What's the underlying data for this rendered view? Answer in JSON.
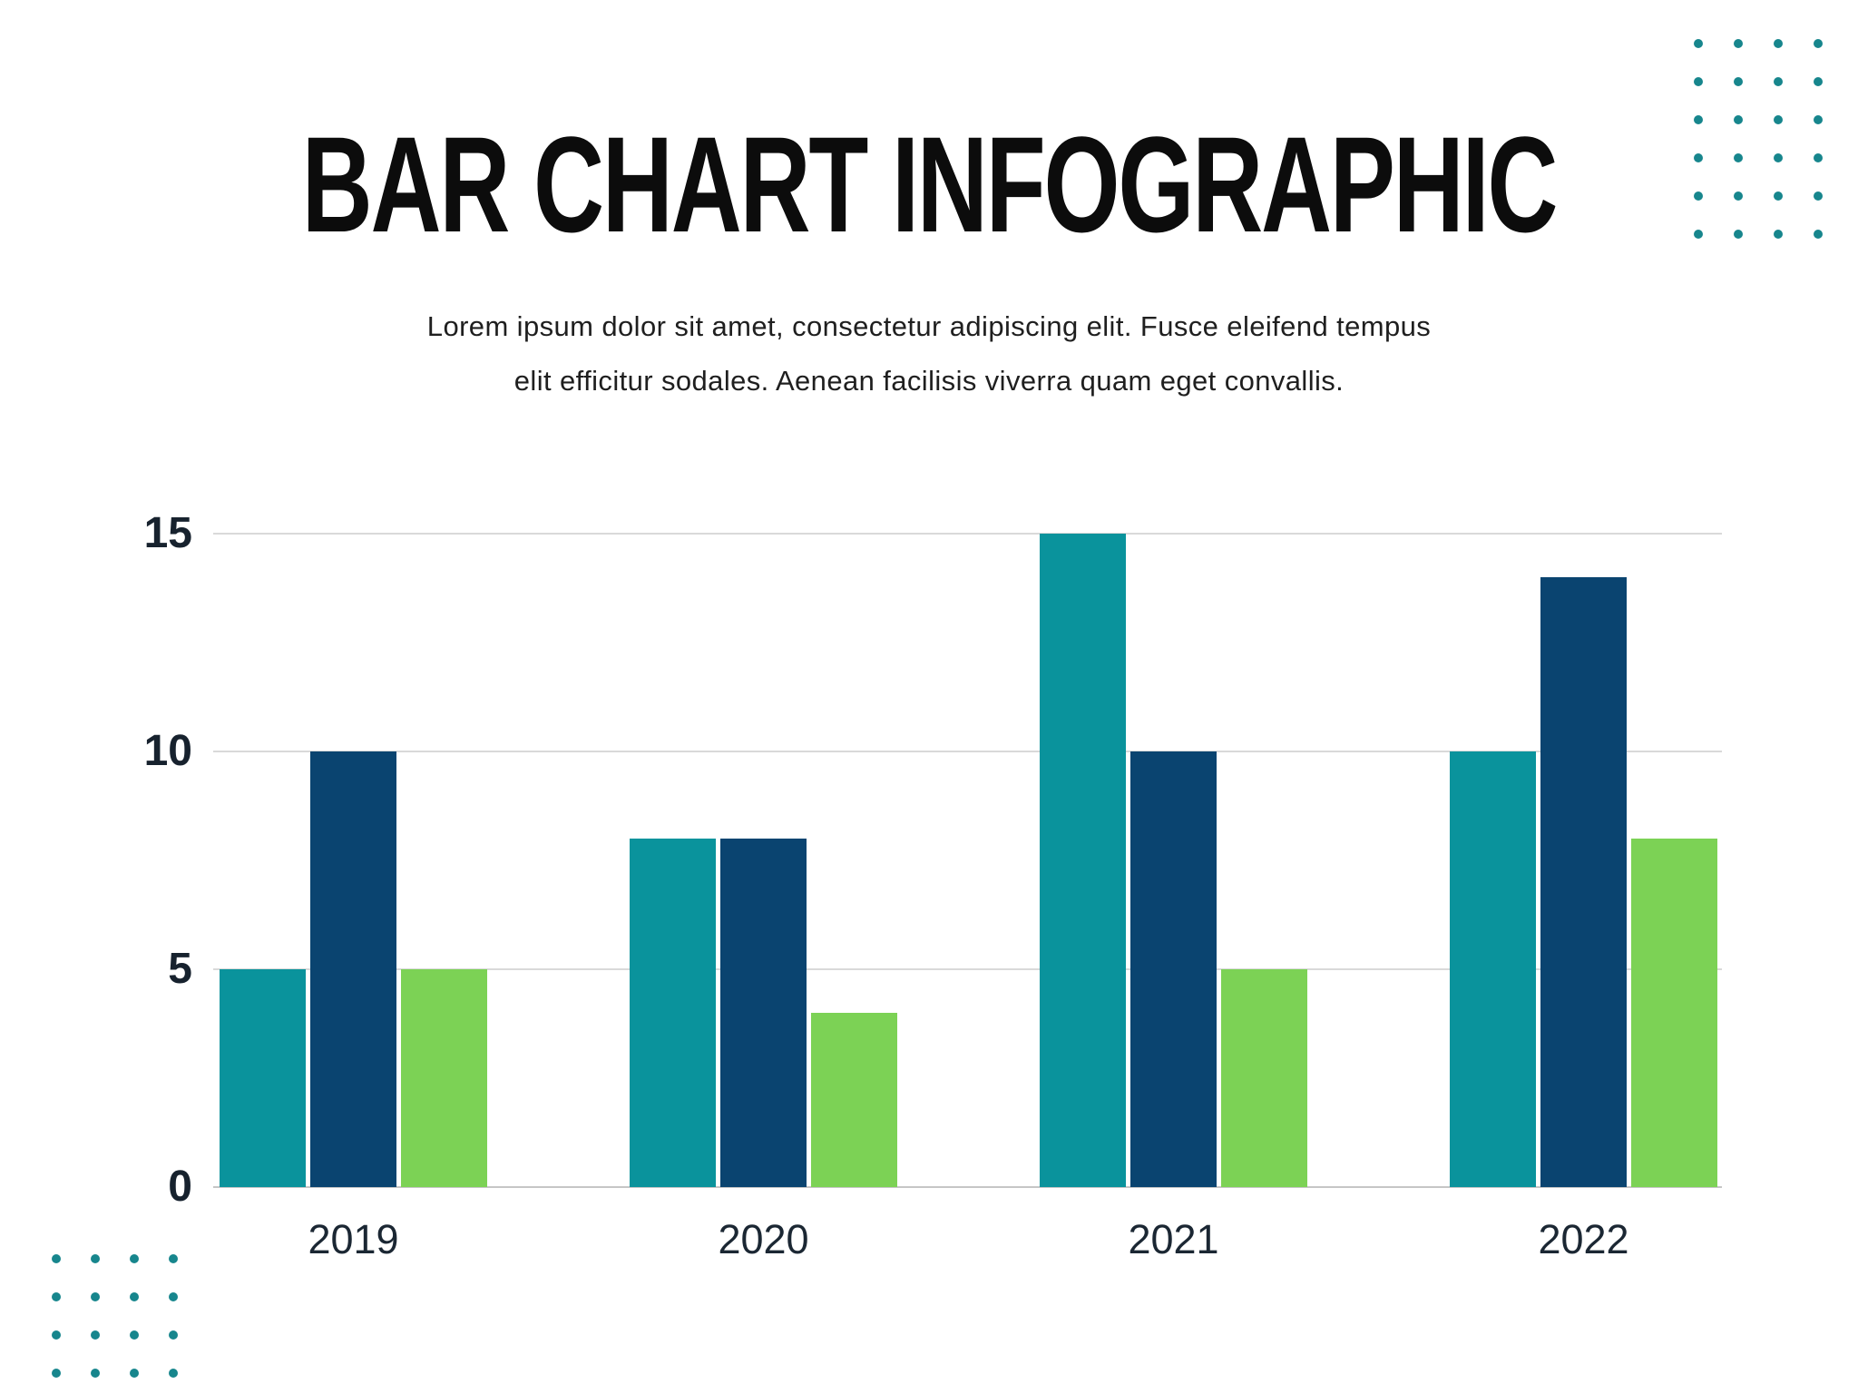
{
  "page": {
    "title": "BAR CHART INFOGRAPHIC",
    "subtitle_line1": "Lorem ipsum dolor sit amet, consectetur adipiscing elit. Fusce eleifend tempus",
    "subtitle_line2": "elit efficitur sodales. Aenean facilisis viverra quam eget convallis."
  },
  "colors": {
    "title_text": "#0C0C0C",
    "body_text": "#1F1F1F",
    "axis_text": "#17222E",
    "category_text": "#1B2733",
    "gridline": "#D9D9D9",
    "baseline": "#C6C6C6",
    "decor_dots": "#17868D",
    "series_teal": "#0A939C",
    "series_navy": "#0A4470",
    "series_green": "#7CD255"
  },
  "decor": {
    "top_right_dots": {
      "rows": 6,
      "cols": 4
    },
    "bottom_left_dots": {
      "rows": 4,
      "cols": 4
    }
  },
  "chart_data": {
    "type": "bar",
    "title": "",
    "xlabel": "",
    "ylabel": "",
    "categories": [
      "2019",
      "2020",
      "2021",
      "2022"
    ],
    "series": [
      {
        "name": "series-teal",
        "color": "#0A939C",
        "values": [
          5,
          8,
          15,
          10
        ]
      },
      {
        "name": "series-navy",
        "color": "#0A4470",
        "values": [
          10,
          8,
          10,
          14
        ]
      },
      {
        "name": "series-green",
        "color": "#7CD255",
        "values": [
          5,
          4,
          5,
          8
        ]
      }
    ],
    "yticks": [
      0,
      5,
      10,
      15
    ],
    "ylim": [
      0,
      15
    ],
    "grid": true,
    "legend": "none"
  }
}
